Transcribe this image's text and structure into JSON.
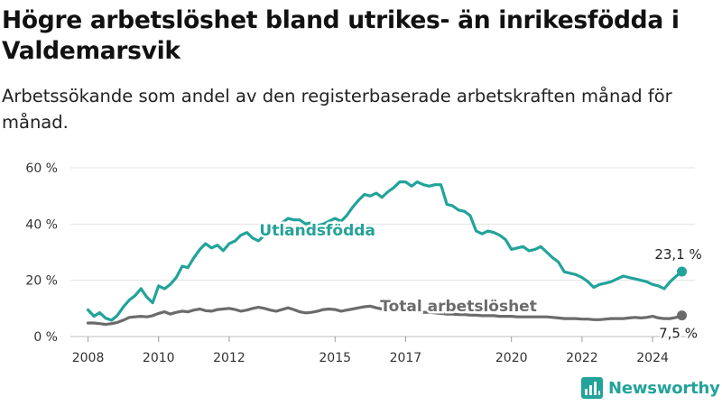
{
  "title": "Högre arbetslöshet bland utrikes- än inrikesfödda i Valdemarsvik",
  "subtitle": "Arbetssökande som andel av den registerbaserade arbetskraften månad för månad.",
  "branding": {
    "name": "Newsworthy",
    "icon": "bar-chart-logo-icon",
    "color": "#22a39a"
  },
  "chart_data": {
    "type": "line",
    "title": "Högre arbetslöshet bland utrikes- än inrikesfödda i Valdemarsvik",
    "subtitle": "Arbetssökande som andel av den registerbaserade arbetskraften månad för månad.",
    "xlabel": "",
    "ylabel": "",
    "x_ticks": [
      "2008",
      "2010",
      "2012",
      "2015",
      "2017",
      "2020",
      "2022",
      "2024"
    ],
    "x_tick_values": [
      2008.0,
      2010.0,
      2012.0,
      2015.0,
      2017.0,
      2020.0,
      2022.0,
      2024.0
    ],
    "y_ticks": [
      "0 %",
      "20 %",
      "40 %",
      "60 %"
    ],
    "y_tick_values": [
      0,
      20,
      40,
      60
    ],
    "ylim": [
      0,
      60
    ],
    "xlim": [
      2007.5,
      2025.2
    ],
    "grid": "horizontal",
    "series": [
      {
        "name": "Utlandsfödda",
        "color": "#22a39a",
        "end_label": "23,1 %",
        "points": [
          [
            2008.0,
            9.5
          ],
          [
            2008.17,
            7.2
          ],
          [
            2008.33,
            8.5
          ],
          [
            2008.5,
            6.5
          ],
          [
            2008.67,
            5.8
          ],
          [
            2008.83,
            7.5
          ],
          [
            2009.0,
            10.5
          ],
          [
            2009.17,
            13.0
          ],
          [
            2009.33,
            14.5
          ],
          [
            2009.5,
            17.0
          ],
          [
            2009.67,
            14.0
          ],
          [
            2009.83,
            12.0
          ],
          [
            2010.0,
            18.0
          ],
          [
            2010.17,
            17.0
          ],
          [
            2010.33,
            18.5
          ],
          [
            2010.5,
            21.0
          ],
          [
            2010.67,
            25.0
          ],
          [
            2010.83,
            24.5
          ],
          [
            2011.0,
            28.0
          ],
          [
            2011.17,
            31.0
          ],
          [
            2011.33,
            33.0
          ],
          [
            2011.5,
            31.5
          ],
          [
            2011.67,
            32.5
          ],
          [
            2011.83,
            30.5
          ],
          [
            2012.0,
            33.0
          ],
          [
            2012.17,
            34.0
          ],
          [
            2012.33,
            36.0
          ],
          [
            2012.5,
            37.0
          ],
          [
            2012.67,
            35.0
          ],
          [
            2012.83,
            34.0
          ],
          [
            2013.0,
            36.0
          ],
          [
            2013.17,
            38.0
          ],
          [
            2013.33,
            39.0
          ],
          [
            2013.5,
            40.5
          ],
          [
            2013.67,
            42.0
          ],
          [
            2013.83,
            41.5
          ],
          [
            2014.0,
            41.5
          ],
          [
            2014.17,
            40.0
          ],
          [
            2014.33,
            40.5
          ],
          [
            2014.5,
            39.5
          ],
          [
            2014.67,
            40.0
          ],
          [
            2014.83,
            41.0
          ],
          [
            2015.0,
            42.0
          ],
          [
            2015.17,
            41.0
          ],
          [
            2015.33,
            43.0
          ],
          [
            2015.5,
            46.0
          ],
          [
            2015.67,
            48.5
          ],
          [
            2015.83,
            50.5
          ],
          [
            2016.0,
            50.0
          ],
          [
            2016.17,
            51.0
          ],
          [
            2016.33,
            49.5
          ],
          [
            2016.5,
            51.5
          ],
          [
            2016.67,
            53.0
          ],
          [
            2016.83,
            55.0
          ],
          [
            2017.0,
            55.0
          ],
          [
            2017.17,
            53.5
          ],
          [
            2017.33,
            55.0
          ],
          [
            2017.5,
            54.0
          ],
          [
            2017.67,
            53.5
          ],
          [
            2017.83,
            54.0
          ],
          [
            2018.0,
            54.0
          ],
          [
            2018.17,
            47.0
          ],
          [
            2018.33,
            46.5
          ],
          [
            2018.5,
            45.0
          ],
          [
            2018.67,
            44.5
          ],
          [
            2018.83,
            43.0
          ],
          [
            2019.0,
            37.5
          ],
          [
            2019.17,
            36.5
          ],
          [
            2019.33,
            37.5
          ],
          [
            2019.5,
            37.0
          ],
          [
            2019.67,
            36.0
          ],
          [
            2019.83,
            34.5
          ],
          [
            2020.0,
            31.0
          ],
          [
            2020.17,
            31.5
          ],
          [
            2020.33,
            32.0
          ],
          [
            2020.5,
            30.5
          ],
          [
            2020.67,
            31.0
          ],
          [
            2020.83,
            32.0
          ],
          [
            2021.0,
            30.0
          ],
          [
            2021.17,
            28.0
          ],
          [
            2021.33,
            26.5
          ],
          [
            2021.5,
            23.0
          ],
          [
            2021.67,
            22.5
          ],
          [
            2021.83,
            22.0
          ],
          [
            2022.0,
            21.0
          ],
          [
            2022.17,
            19.5
          ],
          [
            2022.33,
            17.5
          ],
          [
            2022.5,
            18.5
          ],
          [
            2022.67,
            19.0
          ],
          [
            2022.83,
            19.5
          ],
          [
            2023.0,
            20.5
          ],
          [
            2023.17,
            21.5
          ],
          [
            2023.33,
            21.0
          ],
          [
            2023.5,
            20.5
          ],
          [
            2023.67,
            20.0
          ],
          [
            2023.83,
            19.5
          ],
          [
            2024.0,
            18.5
          ],
          [
            2024.17,
            18.0
          ],
          [
            2024.33,
            17.0
          ],
          [
            2024.5,
            19.5
          ],
          [
            2024.67,
            21.5
          ],
          [
            2024.83,
            23.1
          ]
        ]
      },
      {
        "name": "Total arbetslöshet",
        "color": "#6b6b6b",
        "end_label": "7,5 %",
        "points": [
          [
            2008.0,
            4.8
          ],
          [
            2008.17,
            4.8
          ],
          [
            2008.33,
            4.6
          ],
          [
            2008.5,
            4.3
          ],
          [
            2008.67,
            4.6
          ],
          [
            2008.83,
            5.0
          ],
          [
            2009.0,
            5.8
          ],
          [
            2009.17,
            6.8
          ],
          [
            2009.33,
            7.0
          ],
          [
            2009.5,
            7.2
          ],
          [
            2009.67,
            7.0
          ],
          [
            2009.83,
            7.4
          ],
          [
            2010.0,
            8.2
          ],
          [
            2010.17,
            8.8
          ],
          [
            2010.33,
            8.0
          ],
          [
            2010.5,
            8.6
          ],
          [
            2010.67,
            9.0
          ],
          [
            2010.83,
            8.8
          ],
          [
            2011.0,
            9.4
          ],
          [
            2011.17,
            9.8
          ],
          [
            2011.33,
            9.2
          ],
          [
            2011.5,
            9.0
          ],
          [
            2011.67,
            9.6
          ],
          [
            2011.83,
            9.8
          ],
          [
            2012.0,
            10.0
          ],
          [
            2012.17,
            9.6
          ],
          [
            2012.33,
            9.0
          ],
          [
            2012.5,
            9.4
          ],
          [
            2012.67,
            10.0
          ],
          [
            2012.83,
            10.4
          ],
          [
            2013.0,
            10.0
          ],
          [
            2013.17,
            9.4
          ],
          [
            2013.33,
            9.0
          ],
          [
            2013.5,
            9.6
          ],
          [
            2013.67,
            10.2
          ],
          [
            2013.83,
            9.6
          ],
          [
            2014.0,
            8.8
          ],
          [
            2014.17,
            8.4
          ],
          [
            2014.33,
            8.6
          ],
          [
            2014.5,
            9.0
          ],
          [
            2014.67,
            9.6
          ],
          [
            2014.83,
            9.8
          ],
          [
            2015.0,
            9.6
          ],
          [
            2015.17,
            9.0
          ],
          [
            2015.33,
            9.4
          ],
          [
            2015.5,
            9.8
          ],
          [
            2015.67,
            10.2
          ],
          [
            2015.83,
            10.6
          ],
          [
            2016.0,
            10.8
          ],
          [
            2016.17,
            10.2
          ],
          [
            2016.33,
            9.8
          ],
          [
            2016.5,
            9.6
          ],
          [
            2016.67,
            9.8
          ],
          [
            2016.83,
            9.4
          ],
          [
            2017.0,
            9.0
          ],
          [
            2017.17,
            8.8
          ],
          [
            2017.33,
            8.8
          ],
          [
            2017.5,
            8.6
          ],
          [
            2017.67,
            8.6
          ],
          [
            2017.83,
            8.4
          ],
          [
            2018.0,
            8.2
          ],
          [
            2018.17,
            8.0
          ],
          [
            2018.33,
            8.0
          ],
          [
            2018.5,
            7.8
          ],
          [
            2018.67,
            7.8
          ],
          [
            2018.83,
            7.6
          ],
          [
            2019.0,
            7.6
          ],
          [
            2019.17,
            7.4
          ],
          [
            2019.33,
            7.4
          ],
          [
            2019.5,
            7.4
          ],
          [
            2019.67,
            7.2
          ],
          [
            2019.83,
            7.2
          ],
          [
            2020.0,
            7.2
          ],
          [
            2020.17,
            7.0
          ],
          [
            2020.33,
            7.0
          ],
          [
            2020.5,
            7.0
          ],
          [
            2020.67,
            7.0
          ],
          [
            2020.83,
            7.0
          ],
          [
            2021.0,
            7.0
          ],
          [
            2021.17,
            6.8
          ],
          [
            2021.33,
            6.6
          ],
          [
            2021.5,
            6.4
          ],
          [
            2021.67,
            6.4
          ],
          [
            2021.83,
            6.4
          ],
          [
            2022.0,
            6.2
          ],
          [
            2022.17,
            6.2
          ],
          [
            2022.33,
            6.0
          ],
          [
            2022.5,
            6.0
          ],
          [
            2022.67,
            6.2
          ],
          [
            2022.83,
            6.4
          ],
          [
            2023.0,
            6.4
          ],
          [
            2023.17,
            6.4
          ],
          [
            2023.33,
            6.6
          ],
          [
            2023.5,
            6.8
          ],
          [
            2023.67,
            6.6
          ],
          [
            2023.83,
            6.8
          ],
          [
            2024.0,
            7.2
          ],
          [
            2024.17,
            6.6
          ],
          [
            2024.33,
            6.4
          ],
          [
            2024.5,
            6.4
          ],
          [
            2024.67,
            6.8
          ],
          [
            2024.83,
            7.5
          ]
        ]
      }
    ],
    "annotations": [
      {
        "text": "Utlandsfödda",
        "series": "Utlandsfödda",
        "x": 2014.5,
        "y": 36.0
      },
      {
        "text": "Total arbetslöshet",
        "series": "Total arbetslöshet",
        "x": 2018.5,
        "y": 9.0
      }
    ]
  }
}
